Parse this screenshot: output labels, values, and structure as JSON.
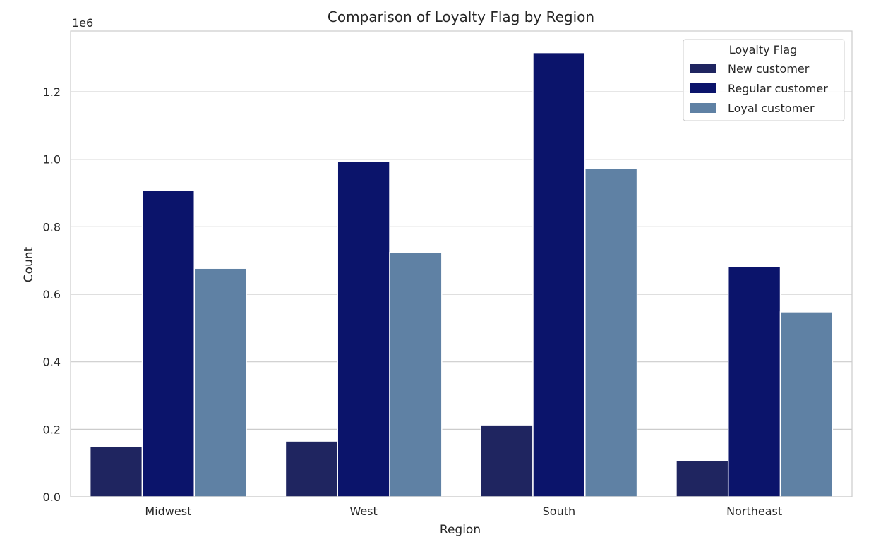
{
  "chart_data": {
    "type": "bar",
    "title": "Comparison of Loyalty Flag by Region",
    "xlabel": "Region",
    "ylabel": "Count",
    "y_scale_label": "1e6",
    "y_scale_factor": 1000000,
    "ylim": [
      0,
      1380000
    ],
    "yticks": [
      0,
      200000,
      400000,
      600000,
      800000,
      1000000,
      1200000
    ],
    "ytick_labels": [
      "0.0",
      "0.2",
      "0.4",
      "0.6",
      "0.8",
      "1.0",
      "1.2"
    ],
    "grid": true,
    "categories": [
      "Midwest",
      "West",
      "South",
      "Northeast"
    ],
    "legend": {
      "title": "Loyalty Flag",
      "placement": "top-right"
    },
    "series": [
      {
        "name": "New customer",
        "color": "#1f2560",
        "values": [
          148000,
          165000,
          213000,
          108000
        ]
      },
      {
        "name": "Regular customer",
        "color": "#0b146b",
        "values": [
          907000,
          993000,
          1316000,
          682000
        ]
      },
      {
        "name": "Loyal customer",
        "color": "#5f81a4",
        "values": [
          677000,
          724000,
          973000,
          548000
        ]
      }
    ]
  }
}
